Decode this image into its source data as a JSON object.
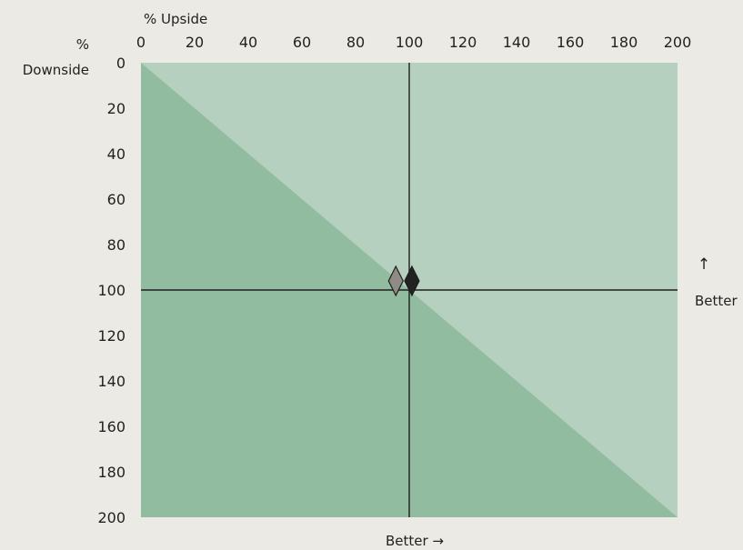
{
  "chart_data": {
    "type": "scatter",
    "x_axis": {
      "label": "% Upside",
      "position": "top",
      "range": [
        0,
        200
      ],
      "ticks": [
        0,
        20,
        40,
        60,
        80,
        100,
        120,
        140,
        160,
        180,
        200
      ],
      "direction_label": "Better →"
    },
    "y_axis": {
      "label_line1": "%",
      "label_line2": "Downside",
      "range": [
        0,
        200
      ],
      "inverted": true,
      "ticks": [
        0,
        20,
        40,
        60,
        80,
        100,
        120,
        140,
        160,
        180,
        200
      ],
      "direction_arrow": "↑",
      "direction_label": "Better"
    },
    "reference_lines": {
      "x": 100,
      "y": 100
    },
    "diagonal": {
      "from": [
        0,
        0
      ],
      "to": [
        200,
        200
      ]
    },
    "region_colors": {
      "upper": "#b6d0bf",
      "lower": "#92bca0"
    },
    "grid": false,
    "series": [
      {
        "x": 95,
        "y": 96,
        "color": "#8e8c84",
        "marker": "diamond"
      },
      {
        "x": 101,
        "y": 96,
        "color": "#222222",
        "marker": "diamond"
      }
    ]
  }
}
